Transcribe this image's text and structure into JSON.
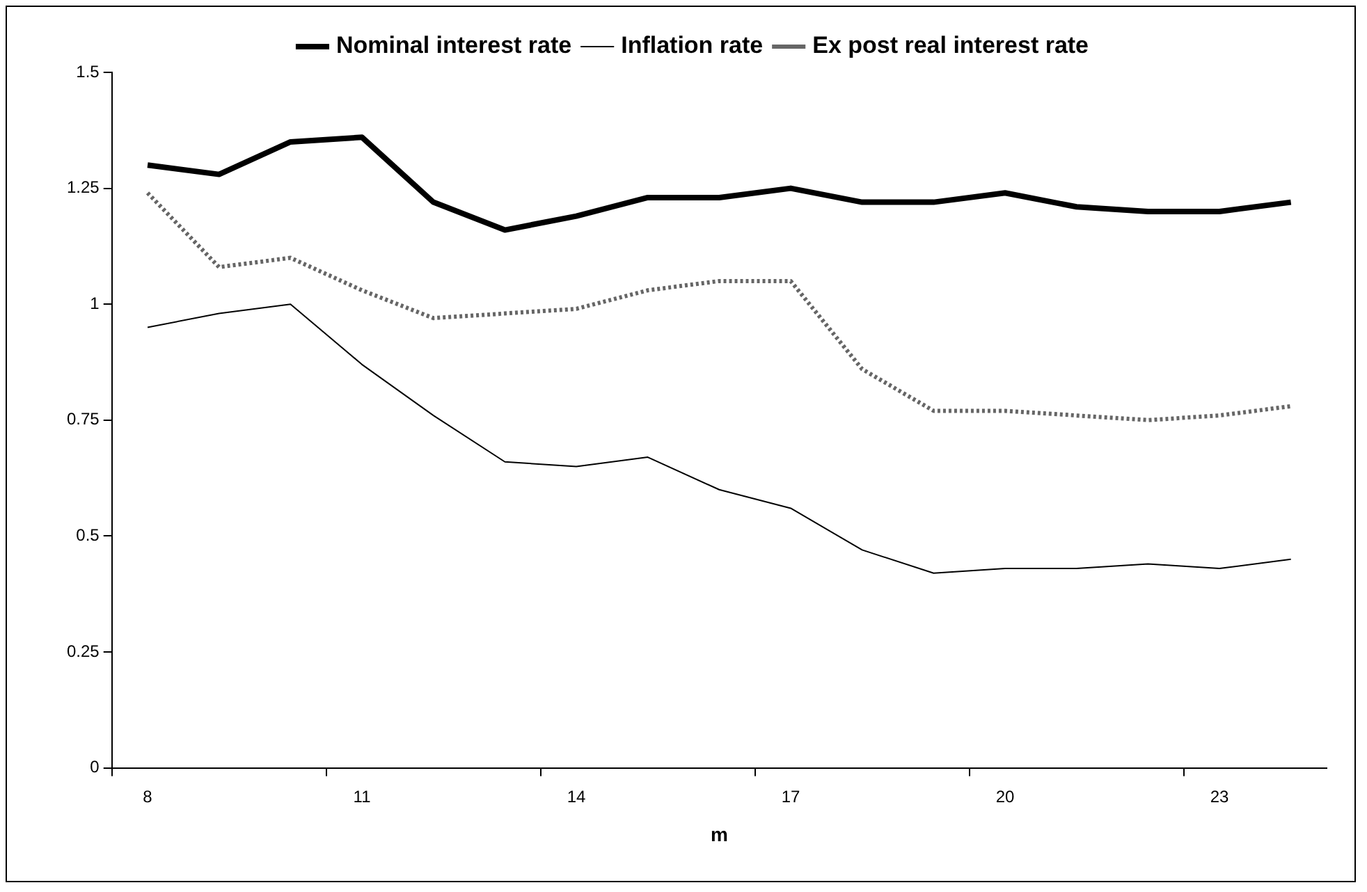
{
  "chart_data": {
    "type": "line",
    "xlabel": "m",
    "categories": [
      "8",
      null,
      null,
      "11",
      null,
      null,
      "14",
      null,
      null,
      "17",
      null,
      null,
      "20",
      null,
      null,
      "23",
      null
    ],
    "series": [
      {
        "name": "Nominal interest rate",
        "color": "#000000",
        "line_style": "solid",
        "values": [
          1.3,
          1.28,
          1.35,
          1.36,
          1.22,
          1.16,
          1.19,
          1.23,
          1.23,
          1.25,
          1.22,
          1.22,
          1.24,
          1.21,
          1.2,
          1.2,
          1.22
        ]
      },
      {
        "name": "Inflation rate",
        "color": "#000000",
        "line_style": "solid",
        "values": [
          0.95,
          0.98,
          1.0,
          0.87,
          0.76,
          0.66,
          0.65,
          0.67,
          0.6,
          0.56,
          0.47,
          0.42,
          0.43,
          0.43,
          0.44,
          0.43,
          0.45
        ]
      },
      {
        "name": "Ex post real interest rate",
        "color": "#666666",
        "line_style": "dotted",
        "values": [
          1.24,
          1.08,
          1.1,
          1.03,
          0.97,
          0.98,
          0.99,
          1.03,
          1.05,
          1.05,
          0.86,
          0.77,
          0.77,
          0.76,
          0.75,
          0.76,
          0.78
        ]
      }
    ],
    "ylim": [
      0,
      1.5
    ],
    "yticks": [
      0,
      0.25,
      0.5,
      0.75,
      1,
      1.25,
      1.5
    ],
    "grid": false,
    "legend": "top",
    "marker": "none"
  }
}
